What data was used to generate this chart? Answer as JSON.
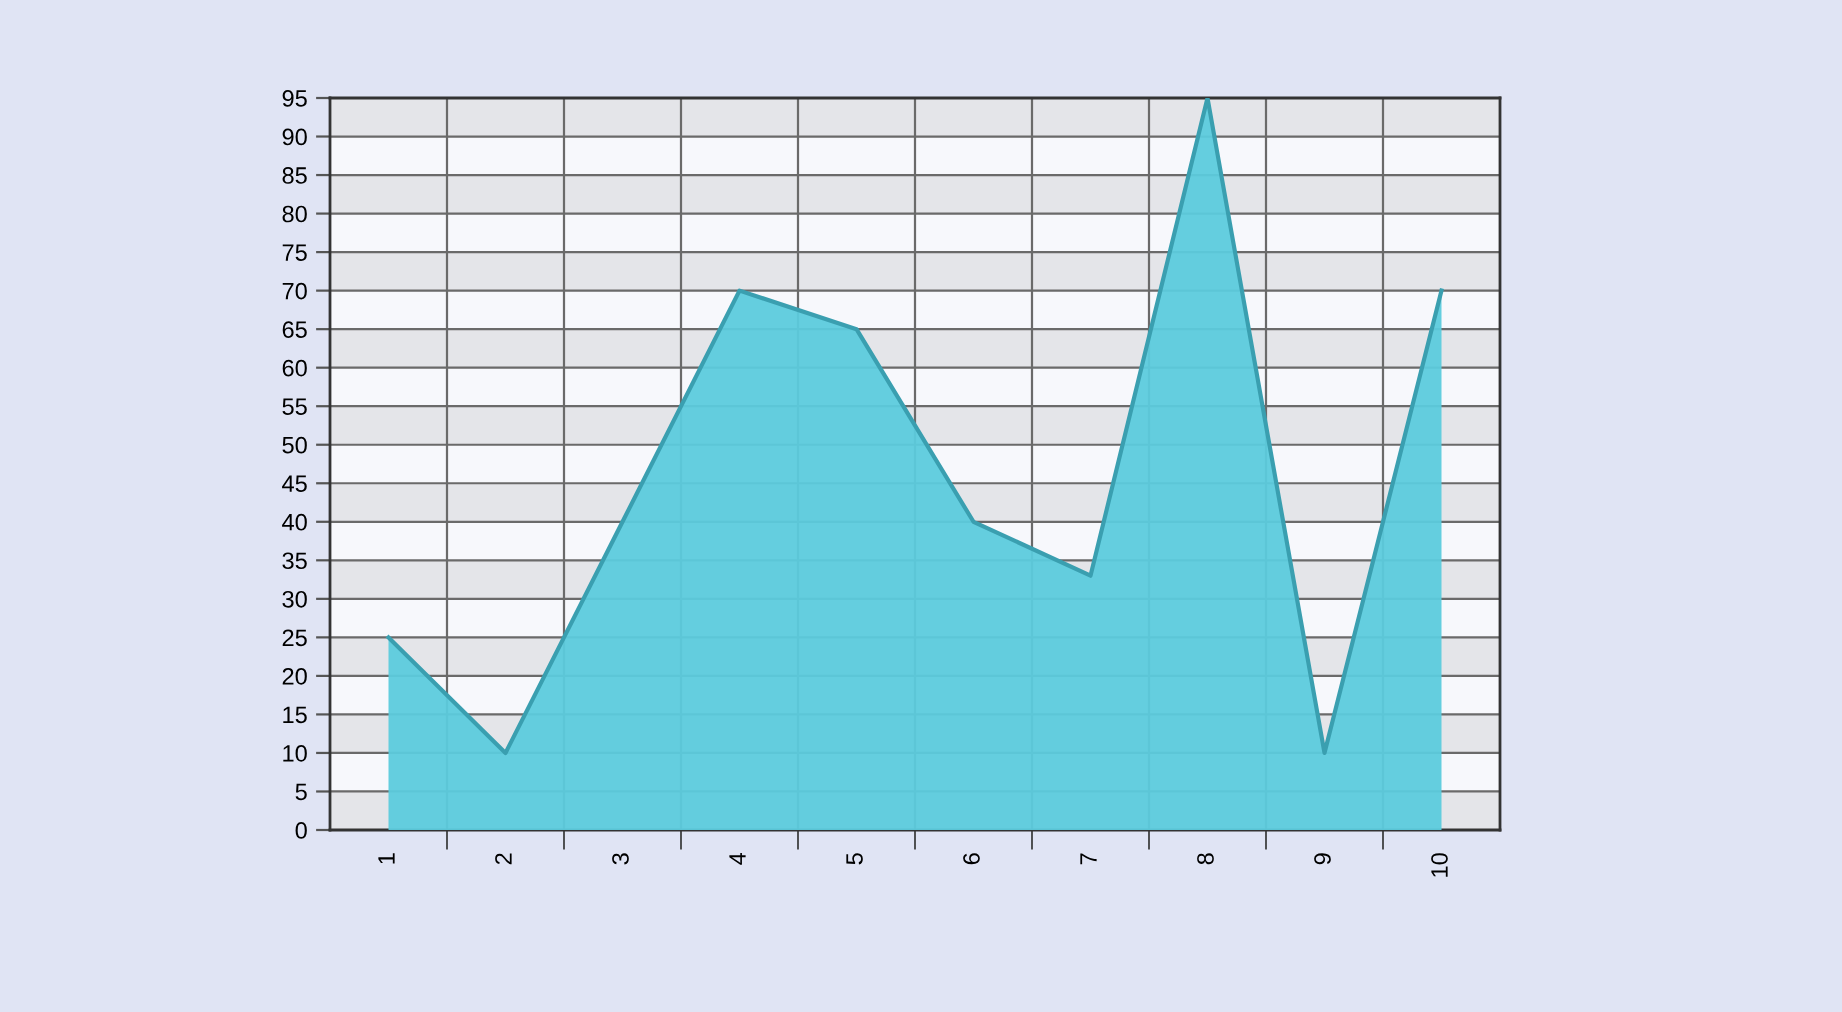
{
  "chart_data": {
    "type": "area",
    "categories": [
      "1",
      "2",
      "3",
      "4",
      "5",
      "6",
      "7",
      "8",
      "9",
      "10"
    ],
    "series": [
      {
        "color": "#5ccbdd",
        "values": [
          25,
          10,
          40,
          70,
          65,
          40,
          33,
          95,
          10,
          70
        ]
      }
    ],
    "ylim": [
      0,
      95
    ],
    "yticks": [
      0,
      5,
      10,
      15,
      20,
      25,
      30,
      35,
      40,
      45,
      50,
      55,
      60,
      65,
      70,
      75,
      80,
      85,
      90,
      95
    ],
    "grid": true
  }
}
